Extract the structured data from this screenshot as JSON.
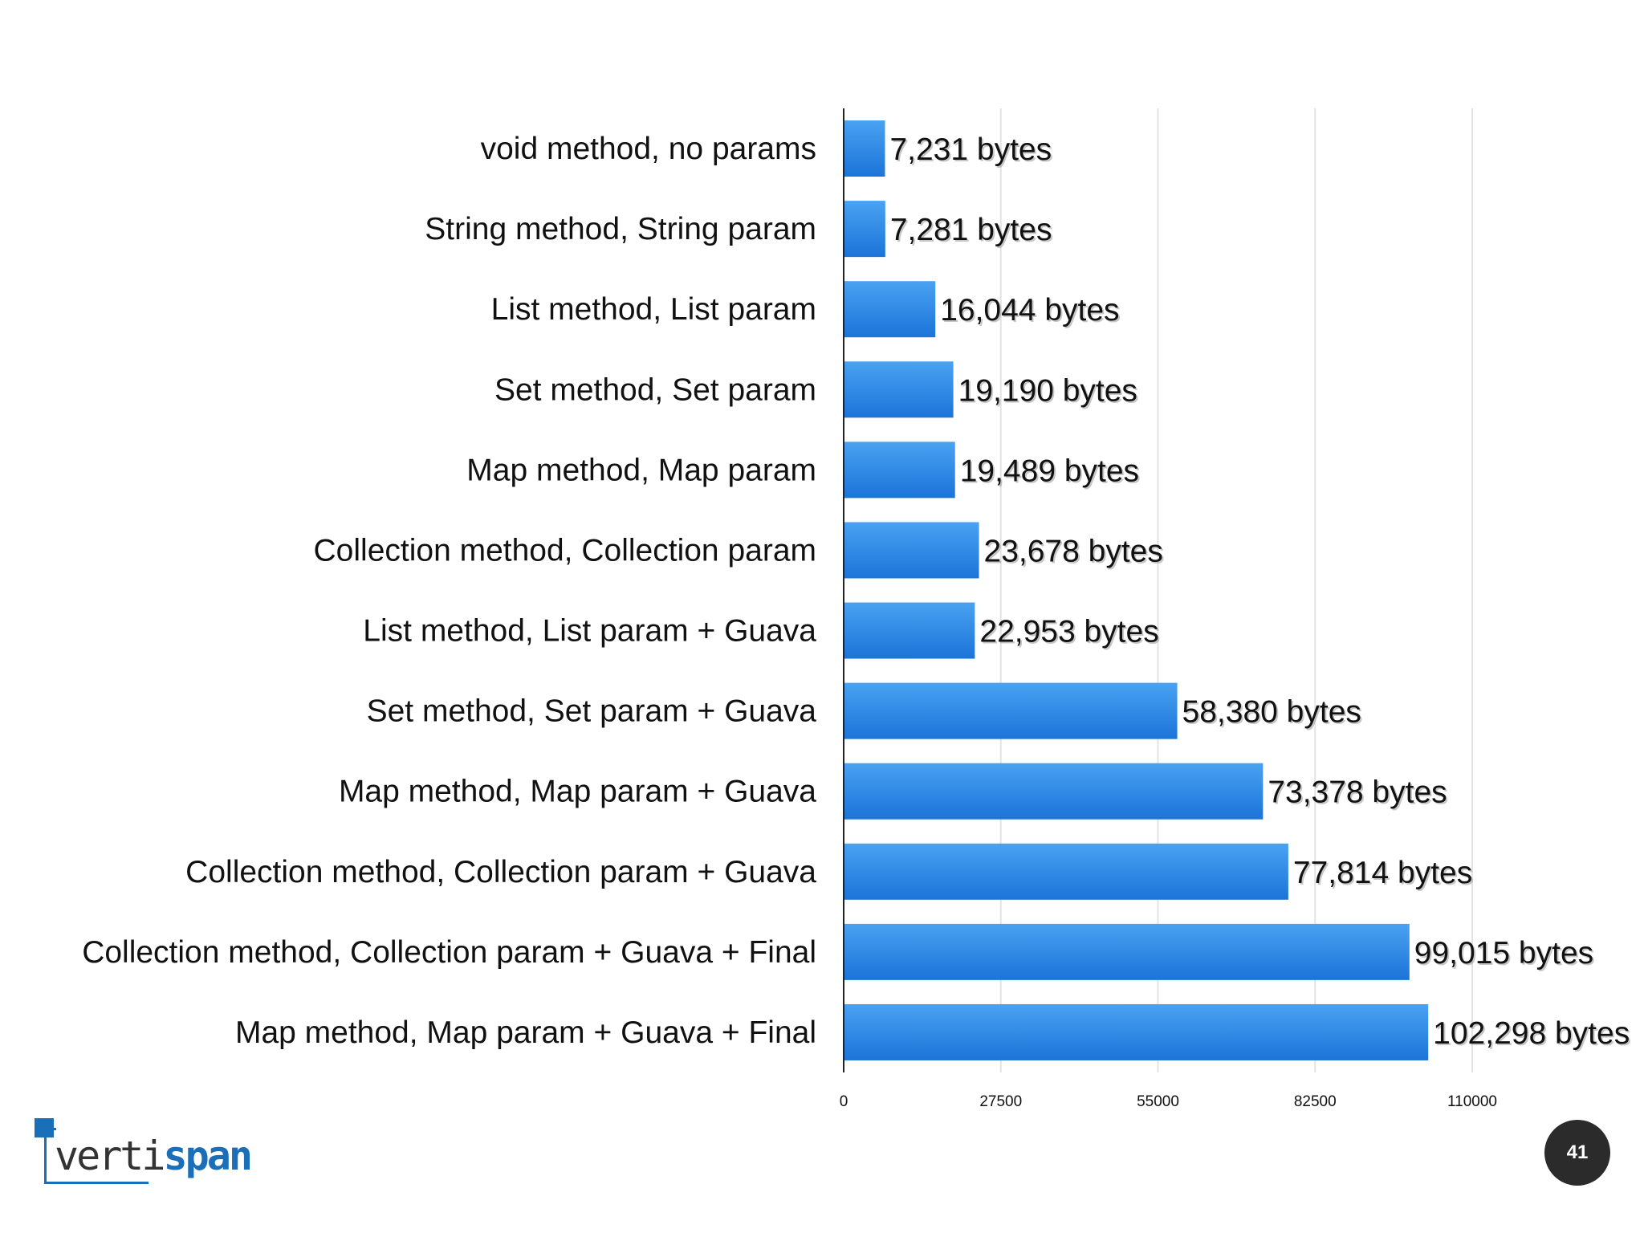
{
  "chart_data": {
    "type": "bar",
    "orientation": "horizontal",
    "categories": [
      "void method, no params",
      "String method, String param",
      "List method, List param",
      "Set method, Set param",
      "Map method, Map param",
      "Collection method, Collection param",
      "List method, List param + Guava",
      "Set method, Set param + Guava",
      "Map method, Map param + Guava",
      "Collection method, Collection param + Guava",
      "Collection method, Collection param + Guava + Final",
      "Map method, Map param + Guava + Final"
    ],
    "values": [
      7231,
      7281,
      16044,
      19190,
      19489,
      23678,
      22953,
      58380,
      73378,
      77814,
      99015,
      102298
    ],
    "value_labels": [
      "7,231 bytes",
      "7,281 bytes",
      "16,044 bytes",
      "19,190 bytes",
      "19,489 bytes",
      "23,678 bytes",
      "22,953 bytes",
      "58,380 bytes",
      "73,378 bytes",
      "77,814 bytes",
      "99,015 bytes",
      "102,298 bytes"
    ],
    "x_ticks": [
      0,
      27500,
      55000,
      82500,
      110000
    ],
    "x_tick_labels": [
      "0",
      "27500",
      "55000",
      "82500",
      "110000"
    ],
    "xlim": [
      0,
      110000
    ],
    "title": "",
    "xlabel": "",
    "ylabel": "",
    "grid": "vertical",
    "legend": "none",
    "bar_color": "#1b74d8",
    "bar_color_light": "#4aa2f2"
  },
  "logo": {
    "text_part1": "verti",
    "text_part2": "span",
    "brand_color": "#1b6fb8"
  },
  "page_number": "41"
}
